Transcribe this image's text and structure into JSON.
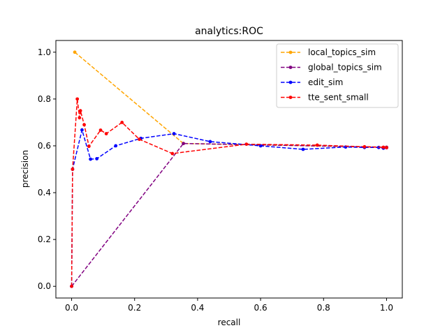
{
  "chart_data": {
    "type": "line",
    "title": "analytics:ROC",
    "xlabel": "recall",
    "ylabel": "precision",
    "xlim": [
      -0.05,
      1.05
    ],
    "ylim": [
      -0.05,
      1.05
    ],
    "xticks": [
      0.0,
      0.2,
      0.4,
      0.6,
      0.8,
      1.0
    ],
    "yticks": [
      0.0,
      0.2,
      0.4,
      0.6,
      0.8,
      1.0
    ],
    "xtick_labels": [
      "0.0",
      "0.2",
      "0.4",
      "0.6",
      "0.8",
      "1.0"
    ],
    "ytick_labels": [
      "0.0",
      "0.2",
      "0.4",
      "0.6",
      "0.8",
      "1.0"
    ],
    "grid": false,
    "legend_position": "top-right",
    "series": [
      {
        "name": "local_topics_sim",
        "color": "#ffa500",
        "x": [
          0.01,
          0.355,
          1.0
        ],
        "y": [
          1.0,
          0.61,
          0.594
        ]
      },
      {
        "name": "global_topics_sim",
        "color": "#800080",
        "x": [
          0.0,
          0.355,
          1.0
        ],
        "y": [
          0.0,
          0.61,
          0.594
        ]
      },
      {
        "name": "edit_sim",
        "color": "#0000ff",
        "x": [
          0.0,
          0.003,
          0.033,
          0.06,
          0.08,
          0.14,
          0.22,
          0.325,
          0.44,
          0.6,
          0.735,
          0.87,
          0.93,
          0.975,
          0.99,
          1.0
        ],
        "y": [
          0.0,
          0.5,
          0.668,
          0.543,
          0.545,
          0.6,
          0.632,
          0.652,
          0.618,
          0.6,
          0.585,
          0.595,
          0.593,
          0.593,
          0.59,
          0.592
        ]
      },
      {
        "name": "tte_sent_small",
        "color": "#ff0000",
        "x": [
          0.0,
          0.003,
          0.018,
          0.025,
          0.028,
          0.04,
          0.055,
          0.092,
          0.11,
          0.16,
          0.215,
          0.32,
          0.555,
          0.78,
          0.93,
          0.99,
          1.0
        ],
        "y": [
          0.0,
          0.5,
          0.8,
          0.72,
          0.75,
          0.69,
          0.598,
          0.667,
          0.652,
          0.7,
          0.628,
          0.567,
          0.607,
          0.603,
          0.596,
          0.594,
          0.592
        ]
      }
    ]
  }
}
